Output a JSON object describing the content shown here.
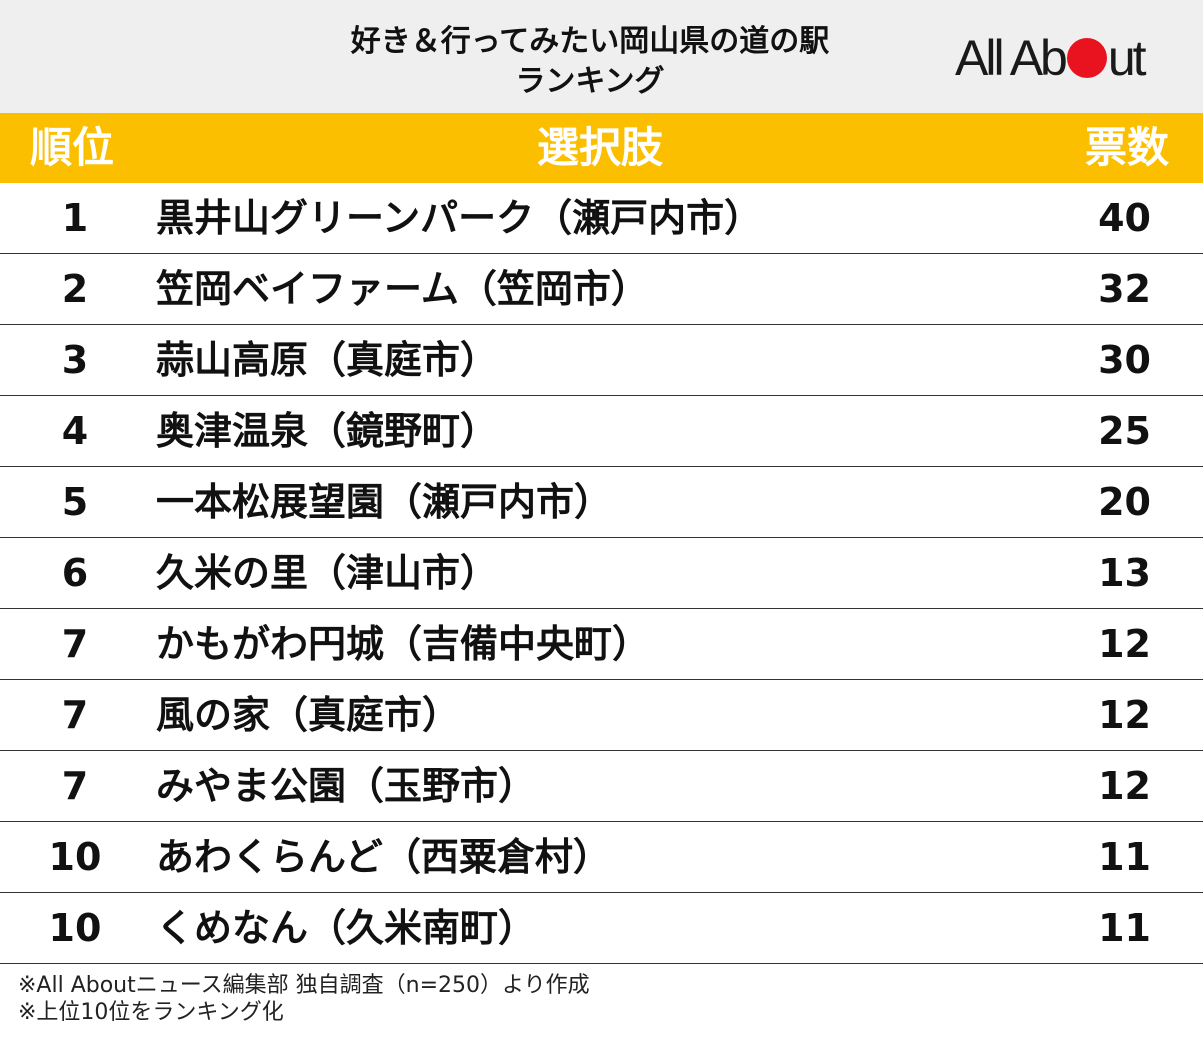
{
  "title_lines": [
    "好き＆行ってみたい岡山県の道の駅",
    "ランキング"
  ],
  "logo": {
    "left": "All Ab",
    "right": "ut",
    "dot_color": "#e8131f"
  },
  "colors": {
    "header_bg": "#fbbf00",
    "title_bg": "#efefef"
  },
  "table_header": {
    "rank": "順位",
    "choice": "選択肢",
    "votes": "票数"
  },
  "chart_data": {
    "type": "table",
    "columns": [
      "順位",
      "選択肢",
      "票数"
    ],
    "rows": [
      {
        "rank": "1",
        "name": "黒井山グリーンパーク（瀬戸内市）",
        "votes": "40"
      },
      {
        "rank": "2",
        "name": "笠岡ベイファーム（笠岡市）",
        "votes": "32"
      },
      {
        "rank": "3",
        "name": "蒜山高原（真庭市）",
        "votes": "30"
      },
      {
        "rank": "4",
        "name": "奥津温泉（鏡野町）",
        "votes": "25"
      },
      {
        "rank": "5",
        "name": "一本松展望園（瀬戸内市）",
        "votes": "20"
      },
      {
        "rank": "6",
        "name": "久米の里（津山市）",
        "votes": "13"
      },
      {
        "rank": "7",
        "name": "かもがわ円城（吉備中央町）",
        "votes": "12"
      },
      {
        "rank": "7",
        "name": "風の家（真庭市）",
        "votes": "12"
      },
      {
        "rank": "7",
        "name": "みやま公園（玉野市）",
        "votes": "12"
      },
      {
        "rank": "10",
        "name": "あわくらんど（西粟倉村）",
        "votes": "11"
      },
      {
        "rank": "10",
        "name": "くめなん（久米南町）",
        "votes": "11"
      }
    ]
  },
  "notes": [
    "※All Aboutニュース編集部 独自調査（n=250）より作成",
    "※上位10位をランキング化"
  ]
}
